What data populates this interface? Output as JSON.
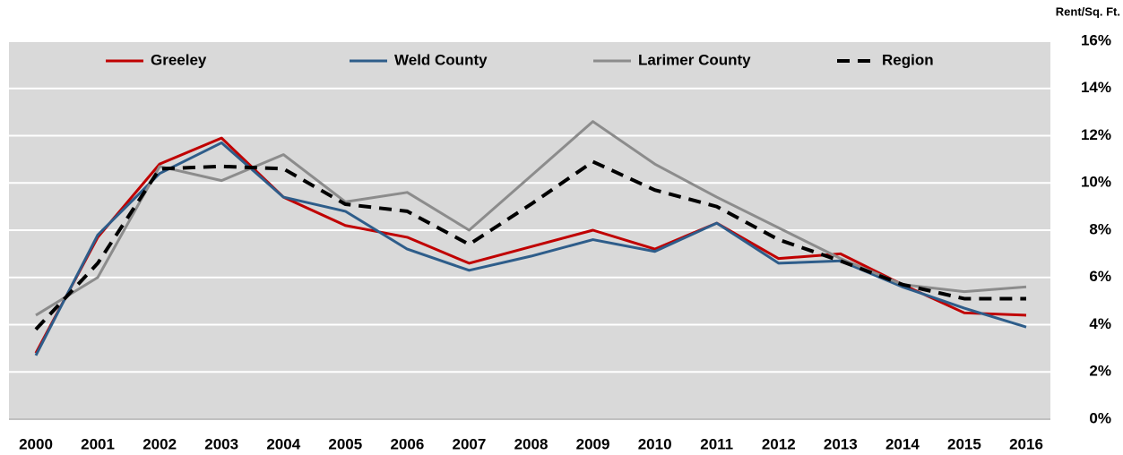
{
  "chart_data": {
    "type": "line",
    "y_axis_label": "Rent/Sq. Ft.",
    "categories": [
      "2000",
      "2001",
      "2002",
      "2003",
      "2004",
      "2005",
      "2006",
      "2007",
      "2008",
      "2009",
      "2010",
      "2011",
      "2012",
      "2013",
      "2014",
      "2015",
      "2016"
    ],
    "series": [
      {
        "name": "Greeley",
        "color": "#c00000",
        "dash": false,
        "values": [
          2.8,
          7.7,
          10.8,
          11.9,
          9.4,
          8.2,
          7.7,
          6.6,
          7.3,
          8.0,
          7.2,
          8.3,
          6.8,
          7.0,
          5.7,
          4.5,
          4.4
        ]
      },
      {
        "name": "Weld County",
        "color": "#2e5d8a",
        "dash": false,
        "values": [
          2.7,
          7.8,
          10.4,
          11.7,
          9.4,
          8.8,
          7.2,
          6.3,
          6.9,
          7.6,
          7.1,
          8.3,
          6.6,
          6.7,
          5.6,
          4.7,
          3.9
        ]
      },
      {
        "name": "Larimer County",
        "color": "#8c8c8c",
        "dash": false,
        "values": [
          4.4,
          6.0,
          10.7,
          10.1,
          11.2,
          9.2,
          9.6,
          8.0,
          10.3,
          12.6,
          10.8,
          9.4,
          8.1,
          6.8,
          5.7,
          5.4,
          5.6
        ]
      },
      {
        "name": "Region",
        "color": "#000000",
        "dash": true,
        "values": [
          3.8,
          6.6,
          10.6,
          10.7,
          10.6,
          9.1,
          8.8,
          7.4,
          9.1,
          10.9,
          9.7,
          9.0,
          7.6,
          6.7,
          5.7,
          5.1,
          5.1
        ]
      }
    ],
    "ylim": [
      0,
      16
    ],
    "yticks": [
      {
        "value": 0,
        "label": "0%"
      },
      {
        "value": 2,
        "label": "2%"
      },
      {
        "value": 4,
        "label": "4%"
      },
      {
        "value": 6,
        "label": "6%"
      },
      {
        "value": 8,
        "label": "8%"
      },
      {
        "value": 10,
        "label": "10%"
      },
      {
        "value": 12,
        "label": "12%"
      },
      {
        "value": 14,
        "label": "14%"
      },
      {
        "value": 16,
        "label": "16%"
      }
    ],
    "y_axis_side": "right",
    "grid": true,
    "legend": "top"
  }
}
